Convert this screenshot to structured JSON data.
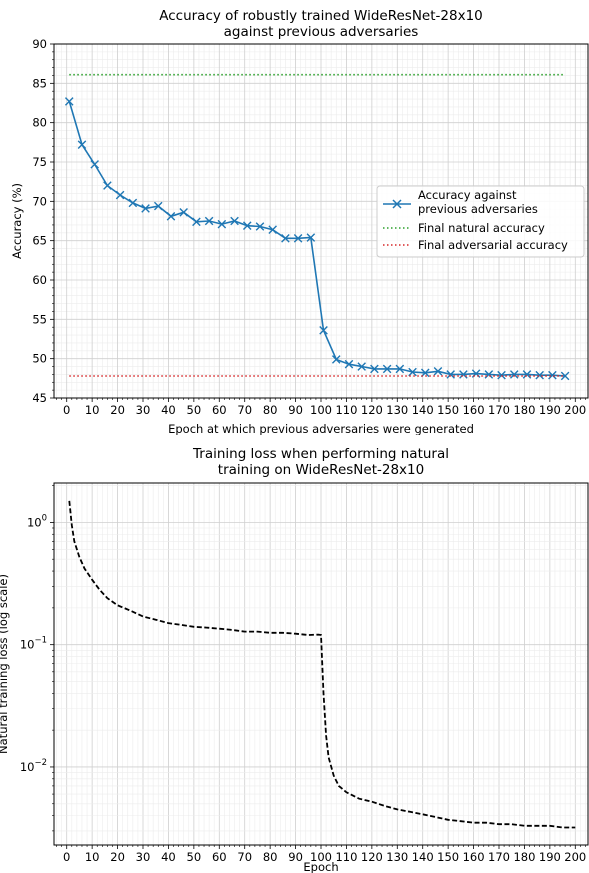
{
  "chart_data": [
    {
      "type": "line",
      "title": [
        "Accuracy of robustly trained WideResNet-28x10",
        "against previous adversaries"
      ],
      "xlabel": "Epoch at which previous adversaries were generated",
      "ylabel": "Accuracy (%)",
      "xlim": [
        -5,
        205
      ],
      "ylim": [
        45,
        90
      ],
      "xticks": [
        0,
        10,
        20,
        30,
        40,
        50,
        60,
        70,
        80,
        90,
        100,
        110,
        120,
        130,
        140,
        150,
        160,
        170,
        180,
        190,
        200
      ],
      "yticks": [
        45,
        50,
        55,
        60,
        65,
        70,
        75,
        80,
        85,
        90
      ],
      "grid": true,
      "legend_position": "center-right",
      "series": [
        {
          "name": "Accuracy against previous adversaries",
          "legend_lines": [
            "Accuracy against",
            "previous adversaries"
          ],
          "style": "solid",
          "marker": "x",
          "color": "#1f77b4",
          "x": [
            1,
            6,
            11,
            16,
            21,
            26,
            31,
            36,
            41,
            46,
            51,
            56,
            61,
            66,
            71,
            76,
            81,
            86,
            91,
            96,
            101,
            106,
            111,
            116,
            121,
            126,
            131,
            136,
            141,
            146,
            151,
            156,
            161,
            166,
            171,
            176,
            181,
            186,
            191,
            196
          ],
          "y": [
            82.7,
            77.2,
            74.7,
            72.0,
            70.8,
            69.8,
            69.1,
            69.4,
            68.1,
            68.6,
            67.4,
            67.5,
            67.1,
            67.5,
            66.9,
            66.8,
            66.4,
            65.3,
            65.3,
            65.4,
            53.6,
            49.9,
            49.3,
            49.0,
            48.7,
            48.7,
            48.7,
            48.3,
            48.2,
            48.4,
            48.0,
            48.0,
            48.1,
            48.0,
            47.9,
            48.0,
            48.0,
            47.9,
            47.9,
            47.8
          ]
        },
        {
          "name": "Final natural accuracy",
          "style": "dotted",
          "color": "#2ca02c",
          "x": [
            1,
            196
          ],
          "y": [
            86.1,
            86.1
          ]
        },
        {
          "name": "Final adversarial accuracy",
          "style": "dotted",
          "color": "#d62728",
          "x": [
            1,
            196
          ],
          "y": [
            47.8,
            47.8
          ]
        }
      ]
    },
    {
      "type": "line",
      "title": [
        "Training loss when performing natural",
        "training on WideResNet-28x10"
      ],
      "xlabel": "Epoch",
      "ylabel": "Natural training loss (log scale)",
      "yscale": "log",
      "xlim": [
        -5,
        205
      ],
      "ylim": [
        0.0023,
        2.1
      ],
      "xticks": [
        0,
        10,
        20,
        30,
        40,
        50,
        60,
        70,
        80,
        90,
        100,
        110,
        120,
        130,
        140,
        150,
        160,
        170,
        180,
        190,
        200
      ],
      "ytick_labels": [
        "10^0",
        "10^-1",
        "10^-2"
      ],
      "grid": true,
      "series": [
        {
          "name": "",
          "style": "dashed",
          "color": "#000000",
          "x": [
            1,
            2,
            3,
            5,
            7,
            10,
            13,
            16,
            20,
            25,
            30,
            35,
            40,
            45,
            50,
            55,
            60,
            65,
            70,
            75,
            80,
            85,
            90,
            95,
            99,
            100,
            101,
            102,
            103,
            105,
            107,
            110,
            115,
            120,
            125,
            130,
            135,
            140,
            145,
            150,
            155,
            160,
            165,
            170,
            175,
            180,
            185,
            190,
            195,
            200
          ],
          "y": [
            1.5,
            0.95,
            0.7,
            0.52,
            0.42,
            0.34,
            0.28,
            0.24,
            0.21,
            0.19,
            0.17,
            0.16,
            0.15,
            0.145,
            0.14,
            0.138,
            0.135,
            0.132,
            0.128,
            0.128,
            0.125,
            0.125,
            0.123,
            0.12,
            0.121,
            0.12,
            0.04,
            0.018,
            0.012,
            0.0085,
            0.007,
            0.0062,
            0.0055,
            0.0052,
            0.0048,
            0.0045,
            0.0043,
            0.0041,
            0.0039,
            0.0037,
            0.0036,
            0.0035,
            0.0035,
            0.0034,
            0.0034,
            0.0033,
            0.0033,
            0.0033,
            0.0032,
            0.0032
          ]
        }
      ]
    }
  ]
}
